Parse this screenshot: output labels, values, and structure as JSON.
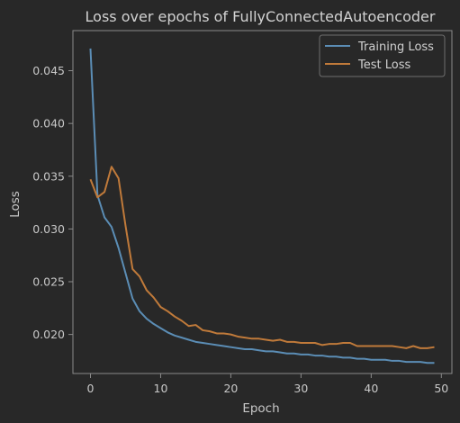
{
  "colors": {
    "background": "#282828",
    "axes_frame": "#8a8a8a",
    "text": "#c8c8c8",
    "training": "#5b8db5",
    "test": "#c07a3a"
  },
  "chart_data": {
    "type": "line",
    "title": "Loss over epochs of FullyConnectedAutoencoder",
    "xlabel": "Epoch",
    "ylabel": "Loss",
    "xlim": [
      -2.5,
      51.5
    ],
    "ylim": [
      0.0163,
      0.0488
    ],
    "xticks": [
      0,
      10,
      20,
      30,
      40,
      50
    ],
    "yticks": [
      0.02,
      0.025,
      0.03,
      0.035,
      0.04,
      0.045
    ],
    "ytick_labels": [
      "0.020",
      "0.025",
      "0.030",
      "0.035",
      "0.040",
      "0.045"
    ],
    "grid": false,
    "legend_position": "top-right",
    "x": [
      0,
      1,
      2,
      3,
      4,
      5,
      6,
      7,
      8,
      9,
      10,
      11,
      12,
      13,
      14,
      15,
      16,
      17,
      18,
      19,
      20,
      21,
      22,
      23,
      24,
      25,
      26,
      27,
      28,
      29,
      30,
      31,
      32,
      33,
      34,
      35,
      36,
      37,
      38,
      39,
      40,
      41,
      42,
      43,
      44,
      45,
      46,
      47,
      48,
      49
    ],
    "series": [
      {
        "name": "Training Loss",
        "color": "#5b8db5",
        "values": [
          0.0471,
          0.0332,
          0.0311,
          0.0302,
          0.0282,
          0.0258,
          0.0234,
          0.0222,
          0.0215,
          0.021,
          0.0206,
          0.0202,
          0.0199,
          0.0197,
          0.0195,
          0.0193,
          0.0192,
          0.0191,
          0.019,
          0.0189,
          0.0188,
          0.0187,
          0.0186,
          0.0186,
          0.0185,
          0.0184,
          0.0184,
          0.0183,
          0.0182,
          0.0182,
          0.0181,
          0.0181,
          0.018,
          0.018,
          0.0179,
          0.0179,
          0.0178,
          0.0178,
          0.0177,
          0.0177,
          0.0176,
          0.0176,
          0.0176,
          0.0175,
          0.0175,
          0.0174,
          0.0174,
          0.0174,
          0.0173,
          0.0173
        ]
      },
      {
        "name": "Test Loss",
        "color": "#c07a3a",
        "values": [
          0.0347,
          0.033,
          0.0335,
          0.0359,
          0.0348,
          0.0303,
          0.0262,
          0.0255,
          0.0242,
          0.0235,
          0.0226,
          0.0222,
          0.0217,
          0.0213,
          0.0208,
          0.0209,
          0.0204,
          0.0203,
          0.0201,
          0.0201,
          0.02,
          0.0198,
          0.0197,
          0.0196,
          0.0196,
          0.0195,
          0.0194,
          0.0195,
          0.0193,
          0.0193,
          0.0192,
          0.0192,
          0.0192,
          0.019,
          0.0191,
          0.0191,
          0.0192,
          0.0192,
          0.0189,
          0.0189,
          0.0189,
          0.0189,
          0.0189,
          0.0189,
          0.0188,
          0.0187,
          0.0189,
          0.0187,
          0.0187,
          0.0188
        ]
      }
    ]
  }
}
